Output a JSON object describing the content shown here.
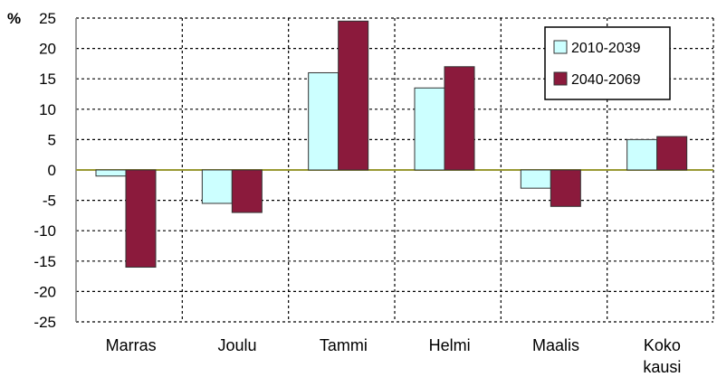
{
  "chart_data": {
    "type": "bar",
    "unit_label": "%",
    "categories": [
      "Marras",
      "Joulu",
      "Tammi",
      "Helmi",
      "Maalis",
      "Koko\nkausi"
    ],
    "series": [
      {
        "name": "2010-2039",
        "color": "#ccffff",
        "values": [
          -1,
          -5.5,
          16,
          13.5,
          -3,
          5
        ]
      },
      {
        "name": "2040-2069",
        "color": "#8b1a3c",
        "values": [
          -16,
          -7,
          24.5,
          17,
          -6,
          5.5
        ]
      }
    ],
    "ylim": [
      -25,
      25
    ],
    "yticks": [
      25,
      20,
      15,
      10,
      5,
      0,
      -5,
      -10,
      -15,
      -20,
      -25
    ],
    "grid": true,
    "legend_position": "top-right"
  }
}
